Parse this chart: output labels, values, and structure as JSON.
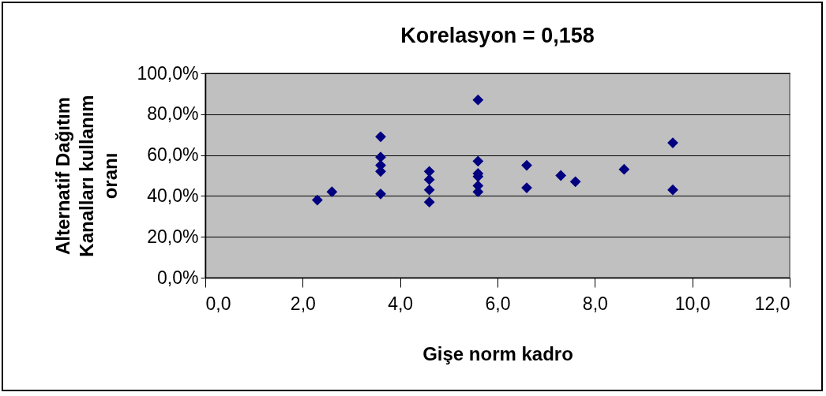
{
  "chart_data": {
    "type": "scatter",
    "title": "Korelasyon = 0,158",
    "xlabel": "Gişe norm kadro",
    "ylabel": "Alternatif Dağıtım Kanalları kullanım oranı",
    "series": [
      {
        "color": "#000080",
        "x": [
          2.3,
          2.6,
          3.6,
          3.6,
          3.6,
          3.6,
          3.6,
          4.6,
          4.6,
          4.6,
          4.6,
          5.6,
          5.6,
          5.6,
          5.6,
          5.6,
          5.6,
          6.6,
          6.6,
          7.3,
          7.6,
          8.6,
          9.6,
          9.6
        ],
        "values": [
          38,
          42,
          69,
          59,
          55,
          52,
          41,
          52,
          48,
          43,
          37,
          87,
          57,
          51,
          49.5,
          45,
          42,
          55,
          44,
          50,
          47,
          53,
          66,
          43
        ]
      }
    ],
    "xlim": [
      0,
      12
    ],
    "ylim": [
      0,
      100
    ],
    "xticks": [
      {
        "value": 0,
        "label": "0,0"
      },
      {
        "value": 2,
        "label": "2,0"
      },
      {
        "value": 4,
        "label": "4,0"
      },
      {
        "value": 6,
        "label": "6,0"
      },
      {
        "value": 8,
        "label": "8,0"
      },
      {
        "value": 10,
        "label": "10,0"
      },
      {
        "value": 12,
        "label": "12,0"
      }
    ],
    "yticks": [
      {
        "value": 0,
        "label": "0,0%"
      },
      {
        "value": 20,
        "label": "20,0%"
      },
      {
        "value": 40,
        "label": "40,0%"
      },
      {
        "value": 60,
        "label": "60,0%"
      },
      {
        "value": 80,
        "label": "80,0%"
      },
      {
        "value": 100,
        "label": "100,0%"
      }
    ],
    "grid": "y",
    "marker": "diamond",
    "legend": false
  }
}
